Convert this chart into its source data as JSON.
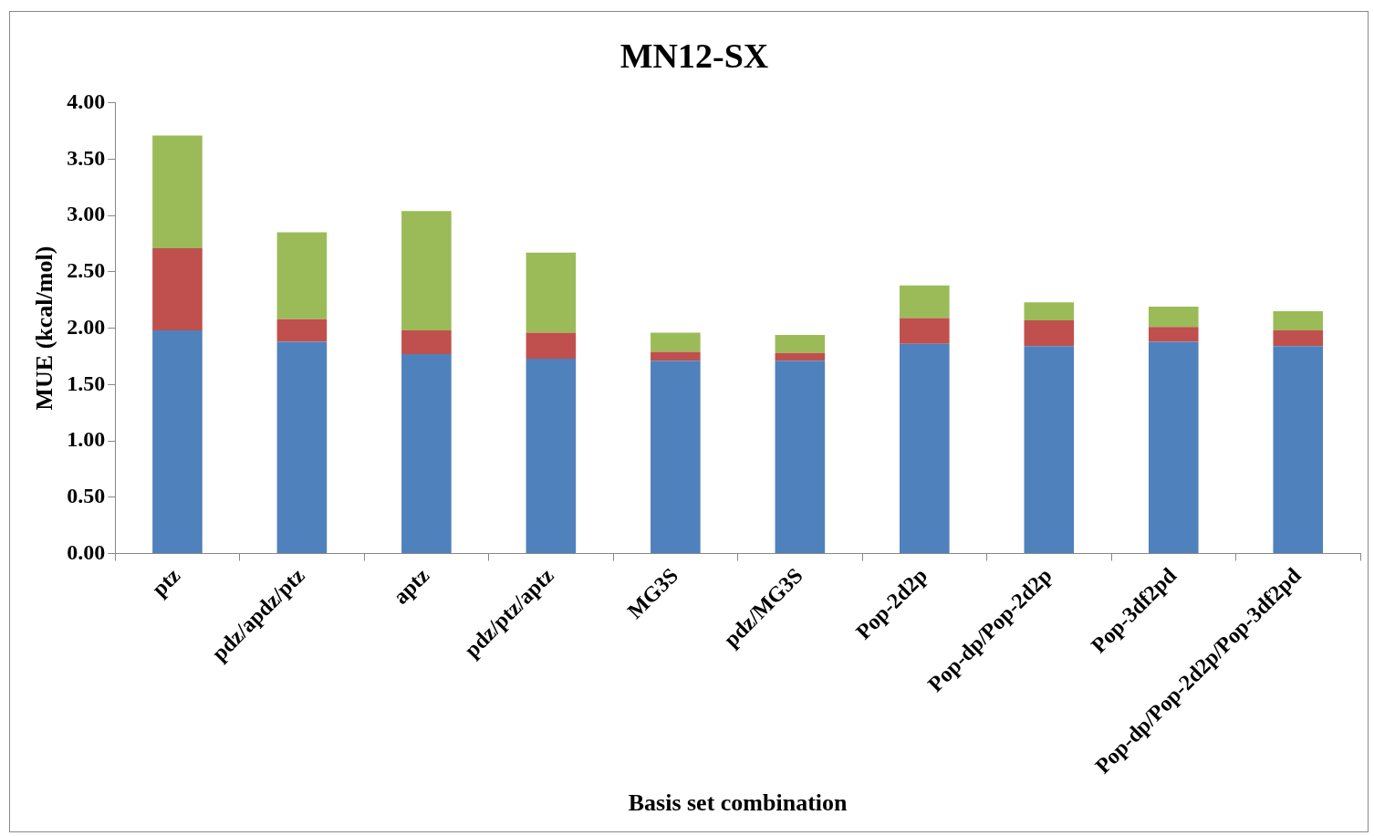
{
  "chart_data": {
    "type": "bar",
    "title": "MN12-SX",
    "xlabel": "Basis set combination",
    "ylabel": "MUE (kcal/mol)",
    "stacked": true,
    "legend": false,
    "grid": false,
    "categories": [
      "ptz",
      "pdz/apdz/ptz",
      "aptz",
      "pdz/ptz/aptz",
      "MG3S",
      "pdz/MG3S",
      "Pop-2d2p",
      "Pop-dp/Pop-2d2p",
      "Pop-3df2pd",
      "Pop-dp/Pop-2d2p/Pop-3df2pd"
    ],
    "series": [
      {
        "color": "#4f81bd",
        "values": [
          1.98,
          1.88,
          1.77,
          1.73,
          1.71,
          1.71,
          1.86,
          1.84,
          1.88,
          1.84
        ]
      },
      {
        "color": "#c0504d",
        "values": [
          0.73,
          0.2,
          0.21,
          0.23,
          0.08,
          0.07,
          0.23,
          0.23,
          0.13,
          0.14
        ]
      },
      {
        "color": "#9bbb59",
        "values": [
          1.0,
          0.77,
          1.06,
          0.71,
          0.17,
          0.16,
          0.29,
          0.16,
          0.18,
          0.17
        ]
      }
    ],
    "ylim": [
      0,
      4
    ],
    "yticks": [
      {
        "value": 0,
        "label": "0.00"
      },
      {
        "value": 0.5,
        "label": "0.50"
      },
      {
        "value": 1,
        "label": "1.00"
      },
      {
        "value": 1.5,
        "label": "1.50"
      },
      {
        "value": 2,
        "label": "2.00"
      },
      {
        "value": 2.5,
        "label": "2.50"
      },
      {
        "value": 3,
        "label": "3.00"
      },
      {
        "value": 3.5,
        "label": "3.50"
      },
      {
        "value": 4,
        "label": "4.00"
      }
    ]
  }
}
